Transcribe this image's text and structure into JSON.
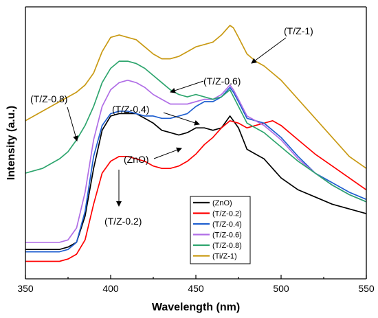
{
  "chart_data": {
    "type": "line",
    "xlabel": "Wavelength (nm)",
    "ylabel": "Intensity (a.u.)",
    "xlim": [
      350,
      550
    ],
    "ylim": [
      0,
      100
    ],
    "x_ticks": [
      "350",
      "400",
      "450",
      "500",
      "550"
    ],
    "grid": false,
    "legend_position": "bottom-center",
    "legend": [
      "(ZnO)",
      "(T/Z-0.2)",
      "(T/Z-0.4)",
      "(T/Z-0.6)",
      "(T/Z-0.8)",
      "(Ti/Z-1)"
    ],
    "series": [
      {
        "name": "(ZnO)",
        "color": "#000000",
        "x": [
          350,
          360,
          370,
          375,
          380,
          385,
          390,
          395,
          400,
          405,
          410,
          415,
          420,
          425,
          430,
          435,
          440,
          445,
          450,
          455,
          460,
          465,
          470,
          472,
          475,
          480,
          485,
          490,
          495,
          500,
          510,
          520,
          530,
          540,
          550
        ],
        "y": [
          6,
          6,
          6,
          7,
          9,
          20,
          40,
          56,
          62,
          63,
          63,
          63,
          61,
          59,
          56,
          55,
          54,
          55,
          57,
          57,
          56,
          57,
          62,
          60,
          57,
          48,
          46,
          44,
          40,
          36,
          31,
          28,
          25,
          23,
          21
        ]
      },
      {
        "name": "(T/Z-0.2)",
        "color": "#ff0000",
        "x": [
          350,
          360,
          370,
          375,
          380,
          385,
          390,
          395,
          400,
          405,
          410,
          415,
          420,
          425,
          430,
          435,
          440,
          445,
          450,
          455,
          460,
          465,
          470,
          475,
          480,
          485,
          490,
          495,
          500,
          510,
          520,
          530,
          540,
          550
        ],
        "y": [
          1,
          1,
          1,
          2,
          4,
          10,
          25,
          38,
          43,
          45,
          45,
          44,
          43,
          41,
          40,
          40,
          41,
          43,
          46,
          50,
          53,
          57,
          60,
          59,
          57,
          58,
          59,
          60,
          58,
          52,
          46,
          41,
          36,
          31
        ]
      },
      {
        "name": "(T/Z-0.4)",
        "color": "#1f5fd0",
        "x": [
          350,
          360,
          370,
          375,
          380,
          385,
          390,
          395,
          400,
          405,
          410,
          415,
          420,
          425,
          430,
          435,
          440,
          445,
          450,
          455,
          460,
          465,
          470,
          472,
          475,
          480,
          485,
          490,
          495,
          500,
          510,
          520,
          530,
          540,
          550
        ],
        "y": [
          5,
          5,
          5,
          6,
          9,
          22,
          45,
          58,
          63,
          64,
          64,
          63,
          62,
          62,
          61,
          61,
          62,
          63,
          66,
          68,
          68,
          70,
          74,
          72,
          68,
          61,
          60,
          59,
          56,
          53,
          45,
          38,
          34,
          30,
          27
        ]
      },
      {
        "name": "(T/Z-0.6)",
        "color": "#b06ee6",
        "x": [
          350,
          360,
          370,
          375,
          380,
          385,
          390,
          395,
          400,
          405,
          410,
          415,
          420,
          425,
          430,
          435,
          440,
          445,
          450,
          455,
          460,
          465,
          470,
          472,
          475,
          480,
          485,
          490,
          495,
          500,
          510,
          520,
          530,
          540,
          550
        ],
        "y": [
          9,
          9,
          9,
          10,
          15,
          30,
          52,
          66,
          73,
          76,
          77,
          76,
          74,
          71,
          69,
          67,
          67,
          67,
          68,
          69,
          69,
          71,
          75,
          73,
          69,
          62,
          60,
          58,
          55,
          52,
          44,
          38,
          33,
          29,
          26
        ]
      },
      {
        "name": "(T/Z-0.8)",
        "color": "#2ea56e",
        "x": [
          350,
          360,
          370,
          375,
          380,
          385,
          390,
          395,
          400,
          405,
          410,
          415,
          420,
          425,
          430,
          435,
          440,
          445,
          450,
          455,
          460,
          465,
          470,
          475,
          480,
          485,
          490,
          495,
          500,
          510,
          520,
          530,
          540,
          550
        ],
        "y": [
          38,
          40,
          44,
          47,
          52,
          58,
          66,
          76,
          82,
          85,
          85,
          84,
          82,
          79,
          76,
          73,
          71,
          70,
          71,
          70,
          69,
          70,
          73,
          66,
          59,
          57,
          55,
          52,
          49,
          43,
          38,
          33,
          29,
          26
        ]
      },
      {
        "name": "(Ti/Z-1)",
        "color": "#c99a14",
        "x": [
          350,
          360,
          370,
          375,
          380,
          385,
          390,
          395,
          400,
          405,
          410,
          415,
          420,
          425,
          430,
          435,
          440,
          445,
          450,
          455,
          460,
          465,
          470,
          472,
          475,
          480,
          485,
          490,
          495,
          500,
          510,
          520,
          530,
          540,
          550
        ],
        "y": [
          60,
          64,
          68,
          70,
          72,
          75,
          80,
          89,
          95,
          96,
          95,
          94,
          91,
          88,
          86,
          86,
          87,
          89,
          91,
          92,
          93,
          96,
          100,
          99,
          95,
          88,
          85,
          83,
          80,
          77,
          69,
          61,
          53,
          45,
          40
        ]
      }
    ],
    "annotations": [
      {
        "text": "(T/Z-1)"
      },
      {
        "text": "(T/Z-0.6)"
      },
      {
        "text": "(T/Z-0.8)"
      },
      {
        "text": "(T/Z-0.4)"
      },
      {
        "text": "(ZnO)"
      },
      {
        "text": "(T/Z-0.2)"
      }
    ]
  }
}
